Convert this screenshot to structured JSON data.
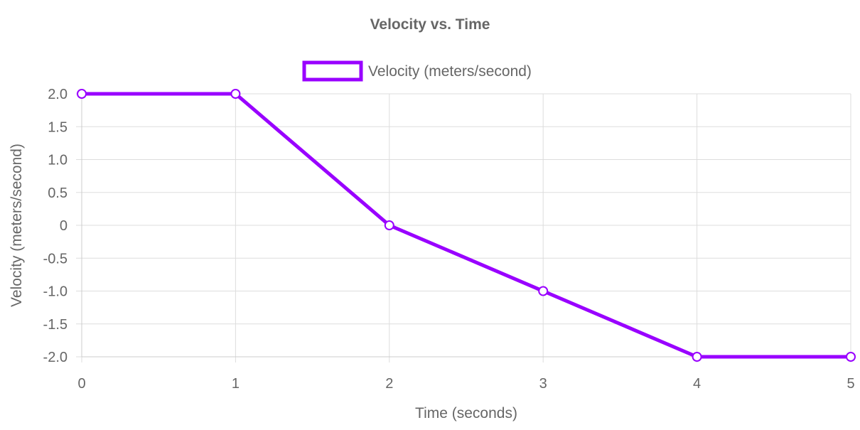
{
  "chart_data": {
    "type": "line",
    "title": "Velocity vs. Time",
    "xlabel": "Time (seconds)",
    "ylabel": "Velocity (meters/second)",
    "x": [
      0,
      1,
      2,
      3,
      4,
      5
    ],
    "xlim": [
      0,
      5
    ],
    "ylim": [
      -2.0,
      2.0
    ],
    "x_ticks": [
      "0",
      "1",
      "2",
      "3",
      "4",
      "5"
    ],
    "y_ticks": [
      "2.0",
      "1.5",
      "1.0",
      "0.5",
      "0",
      "-0.5",
      "-1.0",
      "-1.5",
      "-2.0"
    ],
    "y_tick_values": [
      2.0,
      1.5,
      1.0,
      0.5,
      0,
      -0.5,
      -1.0,
      -1.5,
      -2.0
    ],
    "grid": true,
    "legend_position": "top-center",
    "series": [
      {
        "name": "Velocity (meters/second)",
        "values": [
          2,
          2,
          0,
          -1,
          -2,
          -2
        ],
        "color": "#9900ff"
      }
    ]
  }
}
